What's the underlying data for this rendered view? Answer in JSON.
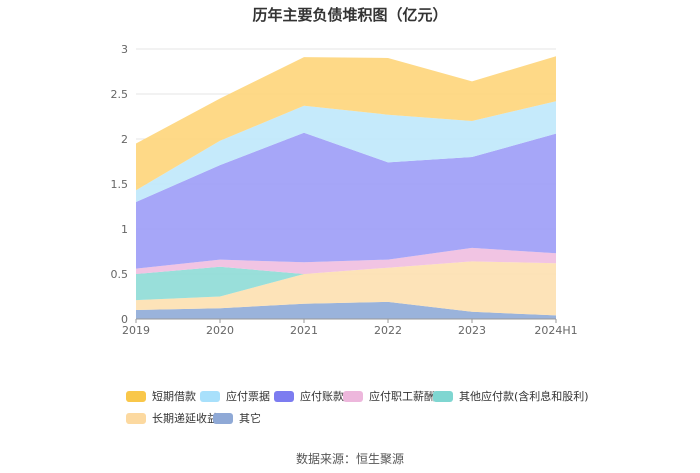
{
  "chart_data": {
    "type": "area",
    "title": "历年主要负债堆积图（亿元）",
    "categories": [
      "2019",
      "2020",
      "2021",
      "2022",
      "2023",
      "2024H1"
    ],
    "ylim": [
      0,
      3
    ],
    "yticks": [
      "0",
      "0.5",
      "1",
      "1.5",
      "2",
      "2.5",
      "3"
    ],
    "grid": true,
    "legend_position": "bottom",
    "series": [
      {
        "name": "其它",
        "color": "#8fabd7",
        "values": [
          0.1,
          0.12,
          0.17,
          0.19,
          0.08,
          0.04
        ]
      },
      {
        "name": "长期递延收益",
        "color": "#fde0b0",
        "values": [
          0.11,
          0.13,
          0.33,
          0.38,
          0.56,
          0.58
        ]
      },
      {
        "name": "其他应付款(含利息和股利)",
        "color": "#8edbd6",
        "values": [
          0.29,
          0.33,
          0.0,
          0.0,
          0.0,
          0.0
        ]
      },
      {
        "name": "应付职工薪酬",
        "color": "#f0bee0",
        "values": [
          0.06,
          0.08,
          0.13,
          0.09,
          0.15,
          0.11
        ]
      },
      {
        "name": "应付账款",
        "color": "#9c9cf7",
        "values": [
          0.74,
          1.05,
          1.44,
          1.08,
          1.01,
          1.33
        ]
      },
      {
        "name": "应付票据",
        "color": "#bfe8fb",
        "values": [
          0.13,
          0.27,
          0.3,
          0.53,
          0.4,
          0.36
        ]
      },
      {
        "name": "短期借款",
        "color": "#fed57a",
        "values": [
          0.52,
          0.47,
          0.54,
          0.63,
          0.44,
          0.5
        ]
      }
    ],
    "legend_order": [
      "短期借款",
      "应付票据",
      "应付账款",
      "应付职工薪酬",
      "其他应付款(含利息和股利)",
      "长期递延收益",
      "其它"
    ],
    "legend_colors": [
      "#f9c74a",
      "#a8e0fb",
      "#7c7cf0",
      "#edb7dc",
      "#7fd6d1",
      "#fcd9a0",
      "#8fa9d6"
    ]
  },
  "source": "数据来源：恒生聚源"
}
